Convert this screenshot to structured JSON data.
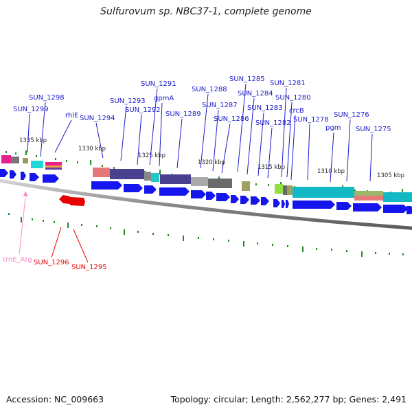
{
  "title": "Sulfurovum sp. NBC37-1, complete genome",
  "footer": {
    "accession": "Accession: NC_009663",
    "topology": "Topology: circular; Length: 2,562,277 bp; Genes: 2,491"
  },
  "colors": {
    "gene_label": "#1a1acc",
    "cds": "#1515ee",
    "rna_label": "#e60000",
    "trna_label": "#ff88c8",
    "gc_tick": "#1f8a1f",
    "backbone": "#777777"
  },
  "scale_labels": [
    "1335 kbp",
    "1330 kbp",
    "1325 kbp",
    "1320 kbp",
    "1315 kbp",
    "1310 kbp",
    "1305 kbp"
  ],
  "gene_labels": [
    "SUN_1298",
    "SUN_1299",
    "rhlE",
    "SUN_1294",
    "SUN_1293",
    "SUN_1292",
    "SUN_1291",
    "gpmA",
    "SUN_1289",
    "SUN_1288",
    "SUN_1287",
    "SUN_1286",
    "SUN_1285",
    "SUN_1284",
    "SUN_1283",
    "SUN_1282",
    "SUN_1281",
    "SUN_1280",
    "crcB",
    "SUN_1278",
    "pgm",
    "SUN_1276",
    "SUN_1275"
  ],
  "rna_labels": [
    "SUN_1296",
    "SUN_1295"
  ],
  "trna_labels": [
    "trnE_Arg"
  ]
}
